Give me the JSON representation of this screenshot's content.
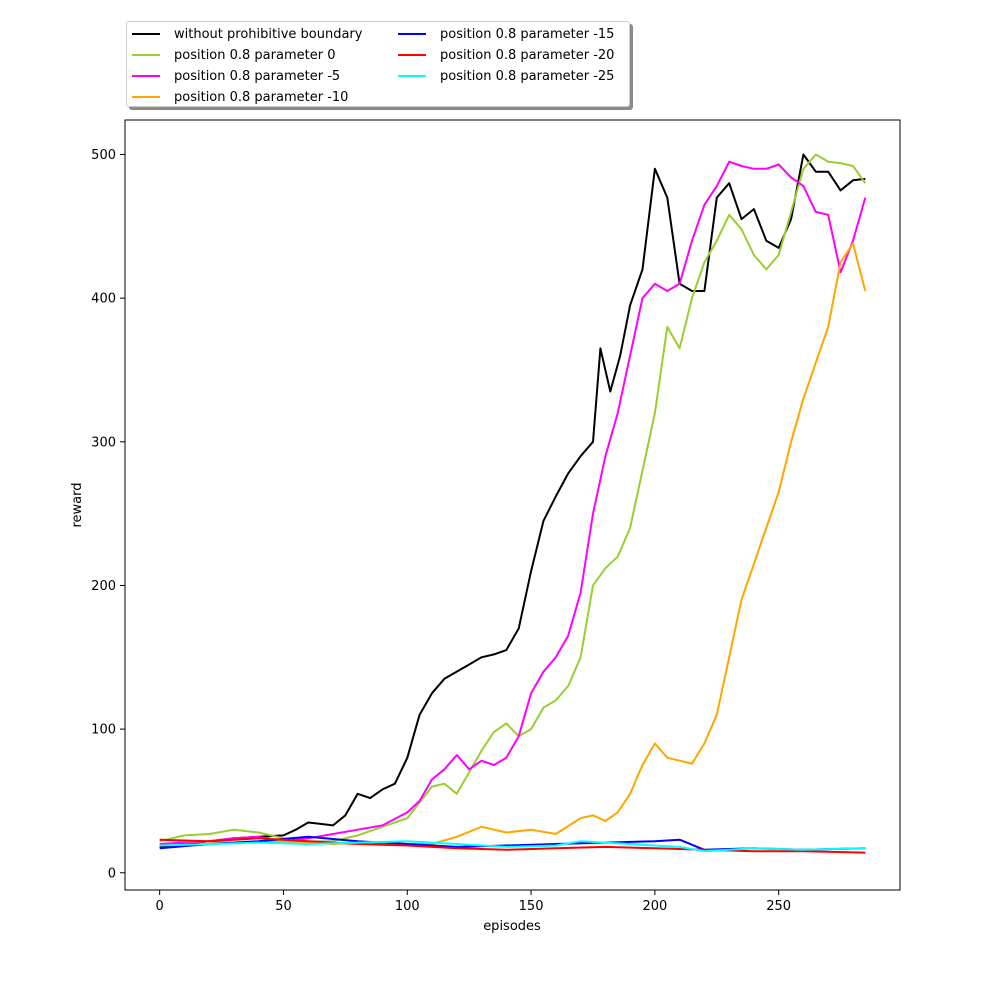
{
  "chart_data": {
    "type": "line",
    "title": "",
    "xlabel": "episodes",
    "ylabel": "reward",
    "xlim": [
      -14,
      299
    ],
    "ylim": [
      -12,
      524
    ],
    "xticks": [
      0,
      50,
      100,
      150,
      200,
      250
    ],
    "yticks": [
      0,
      100,
      200,
      300,
      400,
      500
    ],
    "grid": false,
    "legend_position": "upper-left, outside above plot",
    "series": [
      {
        "name": "without prohibitive boundary",
        "color": "#000000",
        "x": [
          0,
          10,
          20,
          30,
          40,
          50,
          55,
          60,
          65,
          70,
          75,
          80,
          85,
          90,
          95,
          100,
          105,
          110,
          115,
          120,
          125,
          130,
          135,
          140,
          145,
          150,
          155,
          160,
          165,
          170,
          175,
          178,
          182,
          186,
          190,
          195,
          200,
          205,
          210,
          215,
          220,
          225,
          230,
          235,
          240,
          245,
          250,
          255,
          260,
          265,
          270,
          275,
          280,
          285
        ],
        "y": [
          18,
          20,
          22,
          24,
          25,
          26,
          30,
          35,
          34,
          33,
          40,
          55,
          52,
          58,
          62,
          80,
          110,
          125,
          135,
          140,
          145,
          150,
          152,
          155,
          170,
          210,
          245,
          262,
          278,
          290,
          300,
          365,
          335,
          360,
          395,
          420,
          490,
          470,
          410,
          405,
          405,
          470,
          480,
          455,
          462,
          440,
          435,
          455,
          500,
          488,
          488,
          475,
          482,
          483
        ]
      },
      {
        "name": "position 0.8 parameter 0",
        "color": "#9acd32",
        "x": [
          0,
          10,
          20,
          30,
          40,
          50,
          60,
          70,
          80,
          90,
          100,
          110,
          115,
          120,
          125,
          130,
          135,
          140,
          145,
          150,
          155,
          160,
          165,
          170,
          175,
          180,
          185,
          190,
          195,
          200,
          205,
          210,
          215,
          220,
          225,
          230,
          235,
          240,
          245,
          250,
          255,
          260,
          265,
          270,
          275,
          280,
          285
        ],
        "y": [
          22,
          26,
          27,
          30,
          28,
          24,
          22,
          22,
          26,
          32,
          38,
          60,
          62,
          55,
          70,
          85,
          98,
          104,
          95,
          100,
          115,
          120,
          130,
          150,
          200,
          212,
          220,
          240,
          280,
          320,
          380,
          365,
          400,
          425,
          440,
          458,
          448,
          430,
          420,
          430,
          460,
          490,
          500,
          495,
          494,
          492,
          480
        ]
      },
      {
        "name": "position 0.8 parameter -5",
        "color": "#ff00ff",
        "x": [
          0,
          10,
          20,
          30,
          40,
          50,
          60,
          70,
          80,
          90,
          100,
          105,
          110,
          115,
          120,
          125,
          130,
          135,
          140,
          145,
          150,
          155,
          160,
          165,
          170,
          175,
          180,
          185,
          190,
          195,
          200,
          205,
          210,
          215,
          220,
          225,
          230,
          235,
          240,
          245,
          250,
          255,
          260,
          265,
          270,
          275,
          280,
          285
        ],
        "y": [
          20,
          21,
          22,
          24,
          25,
          22,
          24,
          27,
          30,
          33,
          42,
          50,
          65,
          72,
          82,
          72,
          78,
          75,
          80,
          95,
          125,
          140,
          150,
          165,
          195,
          250,
          290,
          320,
          360,
          400,
          410,
          405,
          410,
          440,
          465,
          478,
          495,
          492,
          490,
          490,
          493,
          484,
          478,
          460,
          458,
          418,
          440,
          470
        ]
      },
      {
        "name": "position 0.8 parameter -10",
        "color": "#ffa500",
        "x": [
          0,
          10,
          20,
          30,
          40,
          50,
          60,
          70,
          80,
          90,
          100,
          110,
          120,
          130,
          140,
          150,
          160,
          170,
          175,
          180,
          185,
          190,
          195,
          200,
          205,
          210,
          215,
          220,
          225,
          230,
          235,
          240,
          245,
          250,
          255,
          260,
          265,
          270,
          275,
          280,
          285
        ],
        "y": [
          23,
          22,
          22,
          21,
          21,
          22,
          21,
          20,
          21,
          21,
          20,
          20,
          25,
          32,
          28,
          30,
          27,
          38,
          40,
          36,
          42,
          55,
          75,
          90,
          80,
          78,
          76,
          90,
          110,
          150,
          190,
          215,
          240,
          265,
          300,
          330,
          355,
          380,
          425,
          438,
          405
        ]
      },
      {
        "name": "position 0.8 parameter -15",
        "color": "#0000ff",
        "x": [
          0,
          20,
          40,
          60,
          80,
          100,
          120,
          140,
          160,
          180,
          200,
          210,
          220,
          240,
          260,
          285
        ],
        "y": [
          17,
          20,
          22,
          25,
          22,
          20,
          18,
          19,
          20,
          21,
          22,
          23,
          16,
          17,
          16,
          17
        ]
      },
      {
        "name": "position 0.8 parameter -20",
        "color": "#ff0000",
        "x": [
          0,
          20,
          40,
          60,
          80,
          100,
          120,
          140,
          160,
          180,
          200,
          220,
          240,
          260,
          285
        ],
        "y": [
          23,
          22,
          24,
          22,
          20,
          19,
          17,
          16,
          17,
          18,
          17,
          16,
          15,
          15,
          14
        ]
      },
      {
        "name": "position 0.8 parameter -25",
        "color": "#00ffff",
        "x": [
          0,
          20,
          40,
          60,
          80,
          100,
          120,
          140,
          160,
          170,
          180,
          200,
          210,
          220,
          240,
          260,
          285
        ],
        "y": [
          19,
          20,
          21,
          20,
          21,
          22,
          20,
          18,
          19,
          22,
          21,
          19,
          18,
          15,
          17,
          16,
          17
        ]
      }
    ]
  }
}
